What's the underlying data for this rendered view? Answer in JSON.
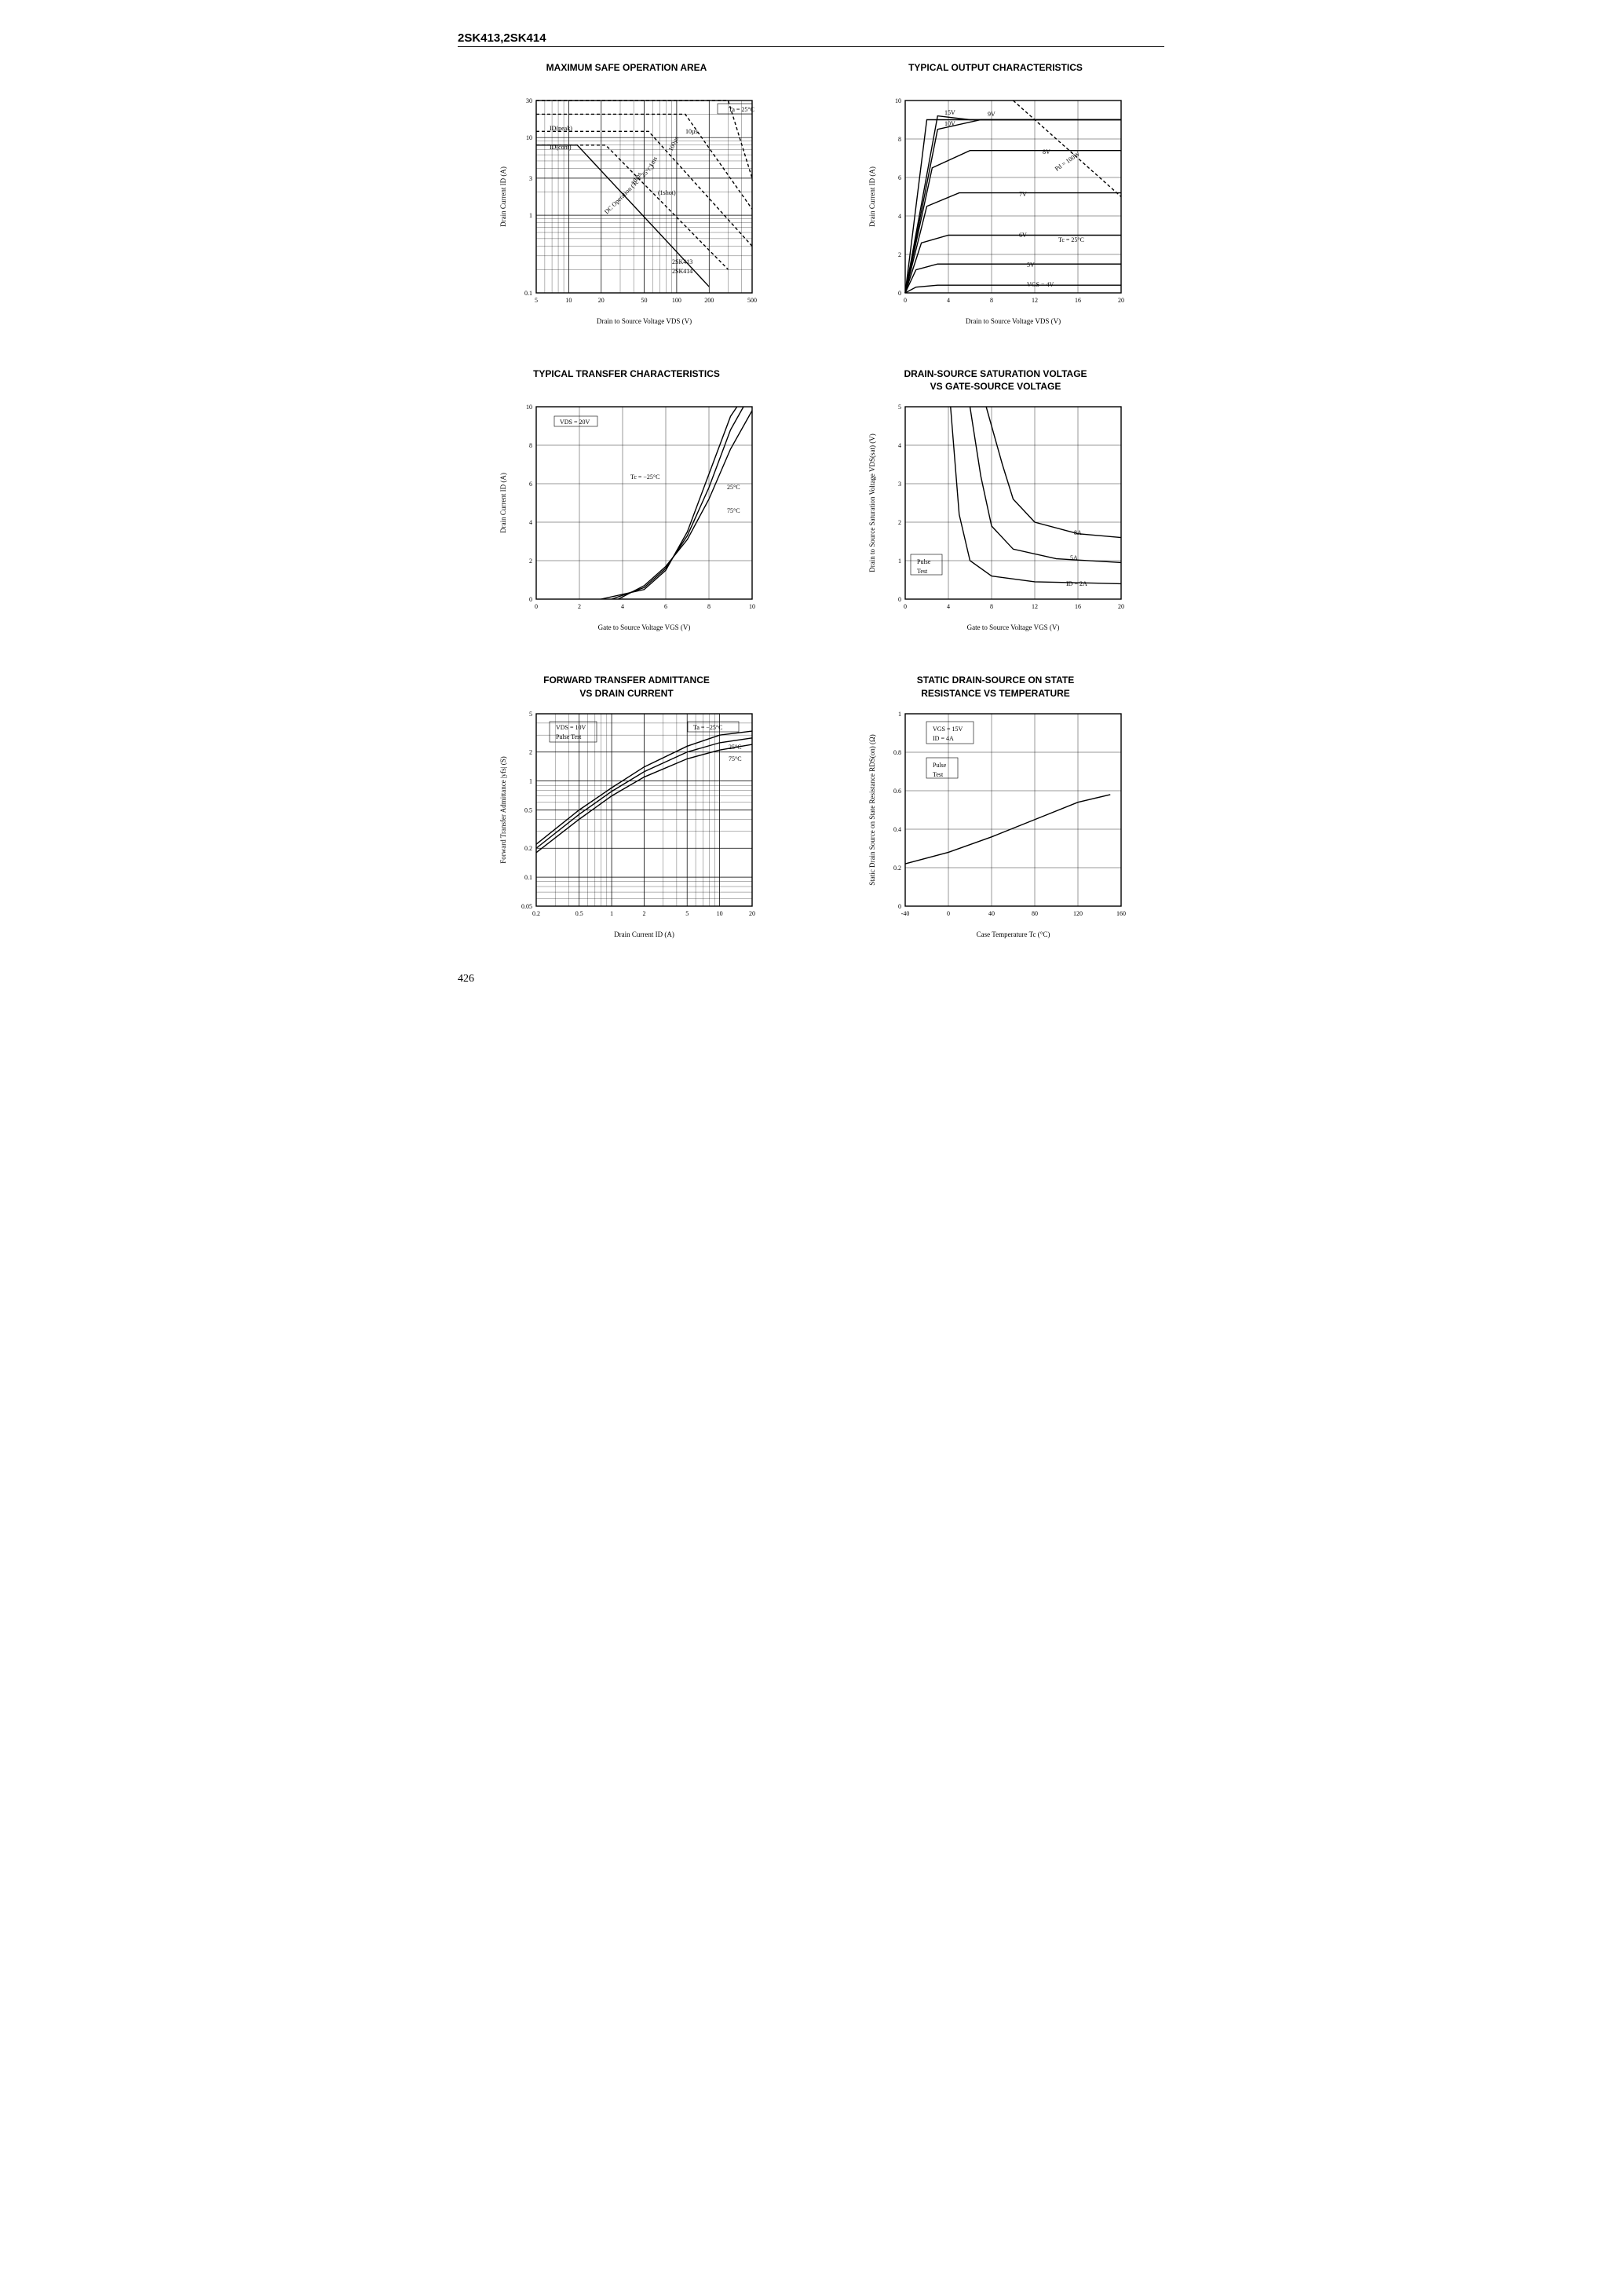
{
  "header": "2SK413,2SK414",
  "page_number": "426",
  "colors": {
    "ink": "#000000",
    "bg": "#ffffff",
    "grid": "#000000"
  },
  "charts": {
    "soa": {
      "title": "MAXIMUM SAFE OPERATION AREA",
      "type": "line-loglog",
      "xlabel": "Drain to Source Voltage VDS (V)",
      "ylabel": "Drain Current ID (A)",
      "x_ticks": [
        5,
        10,
        20,
        50,
        100,
        200,
        500
      ],
      "y_ticks": [
        0.1,
        1,
        3,
        10,
        30
      ],
      "annotations": [
        "Ta = 25°C",
        "10µs",
        "100µs",
        "1ms",
        "10ms",
        "(1shot)",
        "DC Operation (Tc = 25°C)",
        "2SK413",
        "2SK414",
        "ID(peak)",
        "ID(cont)"
      ],
      "curves": [
        {
          "name": "10us",
          "dash": "4 3",
          "pts": [
            [
              5,
              30
            ],
            [
              300,
              30
            ],
            [
              500,
              3
            ]
          ]
        },
        {
          "name": "100us",
          "dash": "4 3",
          "pts": [
            [
              5,
              20
            ],
            [
              120,
              20
            ],
            [
              500,
              1.2
            ]
          ]
        },
        {
          "name": "1ms",
          "dash": "4 3",
          "pts": [
            [
              5,
              12
            ],
            [
              55,
              12
            ],
            [
              500,
              0.4
            ]
          ]
        },
        {
          "name": "10ms",
          "dash": "4 3",
          "pts": [
            [
              5,
              8
            ],
            [
              22,
              8
            ],
            [
              300,
              0.2
            ]
          ]
        },
        {
          "name": "dc",
          "dash": "",
          "pts": [
            [
              5,
              8
            ],
            [
              12,
              8
            ],
            [
              200,
              0.12
            ]
          ]
        }
      ]
    },
    "output": {
      "title": "TYPICAL OUTPUT CHARACTERISTICS",
      "type": "line",
      "xlabel": "Drain to Source Voltage VDS (V)",
      "ylabel": "Drain Current ID (A)",
      "xlim": [
        0,
        20
      ],
      "ylim": [
        0,
        10
      ],
      "x_ticks": [
        0,
        4,
        8,
        12,
        16,
        20
      ],
      "y_ticks": [
        0,
        2,
        4,
        6,
        8,
        10
      ],
      "annotations": [
        "Tc = 25°C",
        "VGS = 4V",
        "5V",
        "6V",
        "7V",
        "8V",
        "9V",
        "10V",
        "15V",
        "Pd = 100W"
      ],
      "series": [
        {
          "label": "4V",
          "pts": [
            [
              0,
              0
            ],
            [
              1,
              0.3
            ],
            [
              3,
              0.4
            ],
            [
              20,
              0.4
            ]
          ]
        },
        {
          "label": "5V",
          "pts": [
            [
              0,
              0
            ],
            [
              1,
              1.2
            ],
            [
              3,
              1.5
            ],
            [
              20,
              1.5
            ]
          ]
        },
        {
          "label": "6V",
          "pts": [
            [
              0,
              0
            ],
            [
              1.5,
              2.6
            ],
            [
              4,
              3.0
            ],
            [
              20,
              3.0
            ]
          ]
        },
        {
          "label": "7V",
          "pts": [
            [
              0,
              0
            ],
            [
              2,
              4.5
            ],
            [
              5,
              5.2
            ],
            [
              20,
              5.2
            ]
          ]
        },
        {
          "label": "8V",
          "pts": [
            [
              0,
              0
            ],
            [
              2.5,
              6.5
            ],
            [
              6,
              7.4
            ],
            [
              20,
              7.4
            ]
          ]
        },
        {
          "label": "9V",
          "pts": [
            [
              0,
              0
            ],
            [
              3,
              8.5
            ],
            [
              7,
              9.0
            ],
            [
              20,
              9.0
            ]
          ]
        },
        {
          "label": "10V",
          "pts": [
            [
              0,
              0
            ],
            [
              3,
              9.2
            ],
            [
              6,
              9.0
            ],
            [
              20,
              9.0
            ]
          ]
        },
        {
          "label": "15V",
          "pts": [
            [
              0,
              0
            ],
            [
              2,
              9.0
            ],
            [
              20,
              9.0
            ]
          ]
        },
        {
          "label": "Pd100W",
          "dash": "4 3",
          "pts": [
            [
              10,
              10
            ],
            [
              20,
              5
            ]
          ]
        }
      ]
    },
    "transfer": {
      "title": "TYPICAL TRANSFER CHARACTERISTICS",
      "type": "line",
      "xlabel": "Gate to Source Voltage VGS (V)",
      "ylabel": "Drain Current ID (A)",
      "xlim": [
        0,
        10
      ],
      "ylim": [
        0,
        10
      ],
      "x_ticks": [
        0,
        2,
        4,
        6,
        8,
        10
      ],
      "y_ticks": [
        0,
        2,
        4,
        6,
        8,
        10
      ],
      "annotations": [
        "VDS = 20V",
        "Tc = −25°C",
        "25°C",
        "75°C"
      ],
      "series": [
        {
          "label": "-25C",
          "pts": [
            [
              3,
              0
            ],
            [
              5,
              0.5
            ],
            [
              6,
              1.5
            ],
            [
              7,
              3.5
            ],
            [
              8,
              6.5
            ],
            [
              9,
              9.5
            ],
            [
              9.3,
              10
            ]
          ]
        },
        {
          "label": "25C",
          "pts": [
            [
              3.5,
              0
            ],
            [
              5,
              0.6
            ],
            [
              6,
              1.6
            ],
            [
              7,
              3.3
            ],
            [
              8,
              5.8
            ],
            [
              9,
              8.8
            ],
            [
              9.6,
              10
            ]
          ]
        },
        {
          "label": "75C",
          "pts": [
            [
              3.8,
              0
            ],
            [
              5,
              0.7
            ],
            [
              6,
              1.7
            ],
            [
              7,
              3.1
            ],
            [
              8,
              5.2
            ],
            [
              9,
              7.8
            ],
            [
              10,
              9.8
            ]
          ]
        }
      ]
    },
    "sat": {
      "title": "DRAIN-SOURCE SATURATION VOLTAGE<br>VS  GATE-SOURCE VOLTAGE",
      "type": "line",
      "xlabel": "Gate to Source Voltage VGS (V)",
      "ylabel": "Drain to Source Saturation Voltage VDS(sat) (V)",
      "xlim": [
        0,
        20
      ],
      "ylim": [
        0,
        5
      ],
      "x_ticks": [
        0,
        4,
        8,
        12,
        16,
        20
      ],
      "y_ticks": [
        0,
        1,
        2,
        3,
        4,
        5
      ],
      "annotations": [
        "Pulse Test",
        "ID = 2A",
        "5A",
        "8A"
      ],
      "series": [
        {
          "label": "2A",
          "pts": [
            [
              4.2,
              5
            ],
            [
              5,
              2.2
            ],
            [
              6,
              1.0
            ],
            [
              8,
              0.6
            ],
            [
              12,
              0.45
            ],
            [
              20,
              0.4
            ]
          ]
        },
        {
          "label": "5A",
          "pts": [
            [
              6,
              5
            ],
            [
              7,
              3.2
            ],
            [
              8,
              1.9
            ],
            [
              10,
              1.3
            ],
            [
              14,
              1.05
            ],
            [
              20,
              0.95
            ]
          ]
        },
        {
          "label": "8A",
          "pts": [
            [
              7.5,
              5
            ],
            [
              9,
              3.5
            ],
            [
              10,
              2.6
            ],
            [
              12,
              2.0
            ],
            [
              16,
              1.7
            ],
            [
              20,
              1.6
            ]
          ]
        }
      ]
    },
    "yfs": {
      "title": "FORWARD TRANSFER ADMITTANCE<br>VS  DRAIN CURRENT",
      "type": "line-loglog",
      "xlabel": "Drain Current ID (A)",
      "ylabel": "Forward Transfer Admittance |yfs| (S)",
      "x_ticks": [
        0.2,
        0.5,
        1.0,
        2,
        5,
        10,
        20
      ],
      "y_ticks": [
        0.05,
        0.1,
        0.2,
        0.5,
        1.0,
        2,
        5
      ],
      "annotations": [
        "VDS = 10V",
        "Pulse Test",
        "Ta = −25°C",
        "25°C",
        "75°C"
      ],
      "series": [
        {
          "label": "-25C",
          "pts": [
            [
              0.2,
              0.22
            ],
            [
              0.5,
              0.5
            ],
            [
              1,
              0.85
            ],
            [
              2,
              1.4
            ],
            [
              5,
              2.3
            ],
            [
              10,
              3.0
            ],
            [
              20,
              3.3
            ]
          ]
        },
        {
          "label": "25C",
          "pts": [
            [
              0.2,
              0.2
            ],
            [
              0.5,
              0.45
            ],
            [
              1,
              0.78
            ],
            [
              2,
              1.25
            ],
            [
              5,
              2.0
            ],
            [
              10,
              2.5
            ],
            [
              20,
              2.8
            ]
          ]
        },
        {
          "label": "75C",
          "pts": [
            [
              0.2,
              0.18
            ],
            [
              0.5,
              0.4
            ],
            [
              1,
              0.7
            ],
            [
              2,
              1.1
            ],
            [
              5,
              1.7
            ],
            [
              10,
              2.1
            ],
            [
              20,
              2.4
            ]
          ]
        }
      ]
    },
    "rds": {
      "title": "STATIC DRAIN-SOURCE ON STATE<br>RESISTANCE VS  TEMPERATURE",
      "type": "line",
      "xlabel": "Case Temperature Tc (°C)",
      "ylabel": "Static Drain Source on State Resistance RDS(on) (Ω)",
      "xlim": [
        -40,
        160
      ],
      "ylim": [
        0,
        1.0
      ],
      "x_ticks": [
        -40,
        0,
        40,
        80,
        120,
        160
      ],
      "y_ticks": [
        0,
        0.2,
        0.4,
        0.6,
        0.8,
        1.0
      ],
      "annotations": [
        "VGS = 15V",
        "ID = 4A",
        "Pulse Test"
      ],
      "series": [
        {
          "label": "rds",
          "pts": [
            [
              -40,
              0.22
            ],
            [
              0,
              0.28
            ],
            [
              40,
              0.36
            ],
            [
              80,
              0.45
            ],
            [
              120,
              0.54
            ],
            [
              150,
              0.58
            ]
          ]
        }
      ]
    }
  }
}
